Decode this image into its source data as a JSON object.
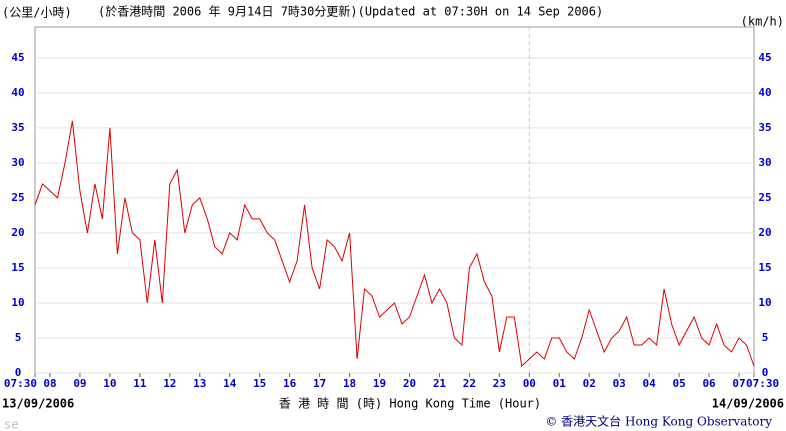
{
  "chart_data": {
    "type": "line",
    "title": "(於香港時間 2006 年 9月14日 7時30分更新)(Updated at 07:30H on 14 Sep 2006)",
    "y_label": "(公里/小時)",
    "y2_label": "(km/h)",
    "x_label": "香 港 時 間 (時) Hong Kong Time (Hour)",
    "start_date": "13/09/2006",
    "end_date": "14/09/2006",
    "credit": "© 香港天文台 Hong Kong Observatory",
    "corner_note": "se",
    "xlim": [
      7.5,
      31.5
    ],
    "xticks": [
      {
        "value": 7.5,
        "label": "07:30"
      },
      {
        "value": 8,
        "label": "08"
      },
      {
        "value": 9,
        "label": "09"
      },
      10,
      11,
      12,
      13,
      14,
      15,
      16,
      17,
      18,
      19,
      20,
      21,
      22,
      23,
      {
        "value": 24,
        "label": "00"
      },
      {
        "value": 25,
        "label": "01"
      },
      {
        "value": 26,
        "label": "02"
      },
      {
        "value": 27,
        "label": "03"
      },
      {
        "value": 28,
        "label": "04"
      },
      {
        "value": 29,
        "label": "05"
      },
      {
        "value": 30,
        "label": "06"
      },
      {
        "value": 31,
        "label": "07"
      },
      {
        "value": 31.5,
        "label": "07:30"
      }
    ],
    "ylim": [
      0,
      49.4
    ],
    "yticks": [
      0,
      5,
      10,
      15,
      20,
      25,
      30,
      35,
      40,
      45
    ],
    "grid": true,
    "x": [
      7.5,
      7.75,
      8,
      8.25,
      8.5,
      8.75,
      9,
      9.25,
      9.5,
      9.75,
      10,
      10.25,
      10.5,
      10.75,
      11,
      11.25,
      11.5,
      11.75,
      12,
      12.25,
      12.5,
      12.75,
      13,
      13.25,
      13.5,
      13.75,
      14,
      14.25,
      14.5,
      14.75,
      15,
      15.25,
      15.5,
      15.75,
      16,
      16.25,
      16.5,
      16.75,
      17,
      17.25,
      17.5,
      17.75,
      18,
      18.25,
      18.5,
      18.75,
      19,
      19.25,
      19.5,
      19.75,
      20,
      20.25,
      20.5,
      20.75,
      21,
      21.25,
      21.5,
      21.75,
      22,
      22.25,
      22.5,
      22.75,
      23,
      23.25,
      23.5,
      23.75,
      24,
      24.25,
      24.5,
      24.75,
      25,
      25.25,
      25.5,
      25.75,
      26,
      26.25,
      26.5,
      26.75,
      27,
      27.25,
      27.5,
      27.75,
      28,
      28.25,
      28.5,
      28.75,
      29,
      29.25,
      29.5,
      29.75,
      30,
      30.25,
      30.5,
      30.75,
      31,
      31.25,
      31.5
    ],
    "series": [
      {
        "color": "#dd0000",
        "values": [
          24,
          27,
          26,
          25,
          30,
          36,
          26,
          20,
          27,
          22,
          35,
          17,
          25,
          20,
          19,
          10,
          19,
          10,
          27,
          29,
          20,
          24,
          25,
          22,
          18,
          17,
          20,
          19,
          24,
          22,
          22,
          20,
          19,
          16,
          13,
          16,
          24,
          15,
          12,
          19,
          18,
          16,
          20,
          2,
          12,
          11,
          8,
          9,
          10,
          7,
          8,
          11,
          14,
          10,
          12,
          10,
          5,
          4,
          15,
          17,
          13,
          11,
          3,
          8,
          8,
          1,
          2,
          3,
          2,
          5,
          5,
          3,
          2,
          5,
          9,
          6,
          3,
          5,
          6,
          8,
          4,
          4,
          5,
          4,
          12,
          7,
          4,
          6,
          8,
          5,
          4,
          7,
          4,
          3,
          5,
          4,
          1
        ]
      }
    ]
  }
}
